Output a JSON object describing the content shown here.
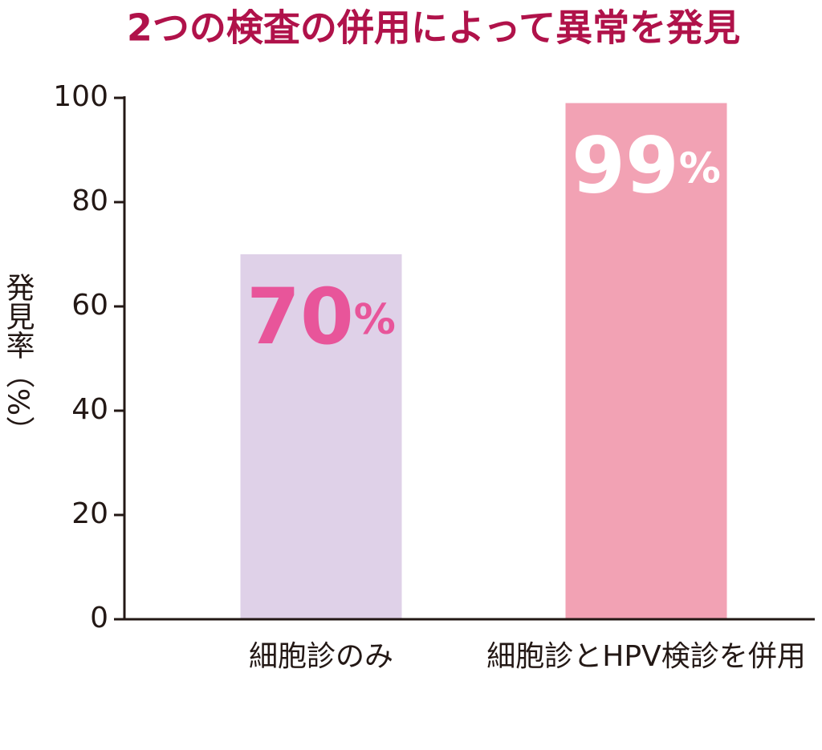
{
  "chart_data": {
    "type": "bar",
    "title": "2つの検査の併用によって異常を発見",
    "y_label": "発見率（%）",
    "categories": [
      "細胞診のみ",
      "細胞診とHPV検診を併用"
    ],
    "values": [
      70,
      99
    ],
    "value_labels": [
      "70%",
      "99%"
    ],
    "colors": [
      "#dfd1e8",
      "#f2a2b4"
    ],
    "value_label_colors": [
      "#e8559a",
      "#ffffff"
    ],
    "ylim": [
      0,
      100
    ],
    "yticks": [
      0,
      20,
      40,
      60,
      80,
      100
    ],
    "grid": false
  }
}
